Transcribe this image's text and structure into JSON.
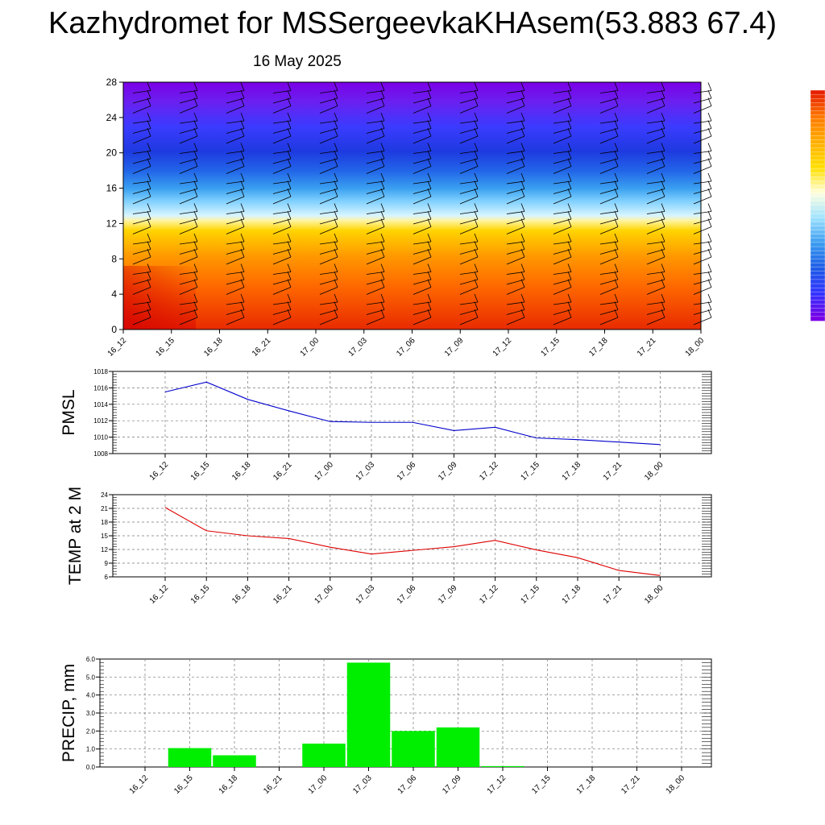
{
  "title": "Kazhydromet for MSSergeevkaKHAsem(53.883 67.4)",
  "subtitle": "16 May 2025",
  "colors": {
    "pmsl_line": "#0000cc",
    "temp_line": "#dd0000",
    "precip_bar": "#00ee00",
    "colorbar": [
      "#7a00e6",
      "#3333ff",
      "#1e5ce6",
      "#3b9cf0",
      "#9fe2ff",
      "#ffffe0",
      "#ffe000",
      "#ffb000",
      "#ff7a00",
      "#e62000"
    ]
  },
  "chart_data": [
    {
      "type": "heatmap",
      "x_ticks": [
        "16_12",
        "16_15",
        "16_18",
        "16_21",
        "17_00",
        "17_03",
        "17_06",
        "17_09",
        "17_12",
        "17_15",
        "17_18",
        "17_21",
        "18_00"
      ],
      "y_ticks": [
        "0",
        "4",
        "8",
        "12",
        "16",
        "20",
        "24",
        "28"
      ],
      "ylim": [
        0,
        28
      ],
      "description": "Vertical cross-section colour field with wind barbs"
    },
    {
      "type": "line",
      "ylabel": "PMSL",
      "x": [
        "16_12",
        "16_15",
        "16_18",
        "16_21",
        "17_00",
        "17_03",
        "17_06",
        "17_09",
        "17_12",
        "17_15",
        "17_18",
        "17_21",
        "18_00"
      ],
      "y_ticks": [
        "1008",
        "1010",
        "1012",
        "1014",
        "1016",
        "1018"
      ],
      "ylim": [
        1008,
        1018
      ],
      "grid": true,
      "series": [
        {
          "values": [
            1015.5,
            1016.7,
            1014.6,
            1013.2,
            1011.9,
            1011.8,
            1011.8,
            1010.8,
            1011.2,
            1009.9,
            1009.7,
            1009.4,
            1009.1
          ]
        }
      ]
    },
    {
      "type": "line",
      "ylabel": "TEMP at 2 M",
      "x": [
        "16_12",
        "16_15",
        "16_18",
        "16_21",
        "17_00",
        "17_03",
        "17_06",
        "17_09",
        "17_12",
        "17_15",
        "17_18",
        "17_21",
        "18_00"
      ],
      "y_ticks": [
        "6",
        "9",
        "12",
        "15",
        "18",
        "21",
        "24"
      ],
      "ylim": [
        6,
        24
      ],
      "grid": true,
      "series": [
        {
          "values": [
            21.2,
            16.1,
            15.0,
            14.4,
            12.5,
            11.0,
            11.8,
            12.6,
            14.0,
            11.9,
            10.2,
            7.4,
            6.3
          ]
        }
      ]
    },
    {
      "type": "bar",
      "ylabel": "PRECIP, mm",
      "x": [
        "16_12",
        "16_15",
        "16_18",
        "16_21",
        "17_00",
        "17_03",
        "17_06",
        "17_09",
        "17_12",
        "17_15",
        "17_18",
        "17_21",
        "18_00"
      ],
      "y_ticks": [
        "0.0",
        "1.0",
        "2.0",
        "3.0",
        "4.0",
        "5.0",
        "6.0"
      ],
      "ylim": [
        0,
        6
      ],
      "grid": true,
      "values": [
        0,
        1.05,
        0.65,
        0,
        1.3,
        5.8,
        2.0,
        2.2,
        0.05,
        0,
        0,
        0,
        0
      ]
    }
  ]
}
